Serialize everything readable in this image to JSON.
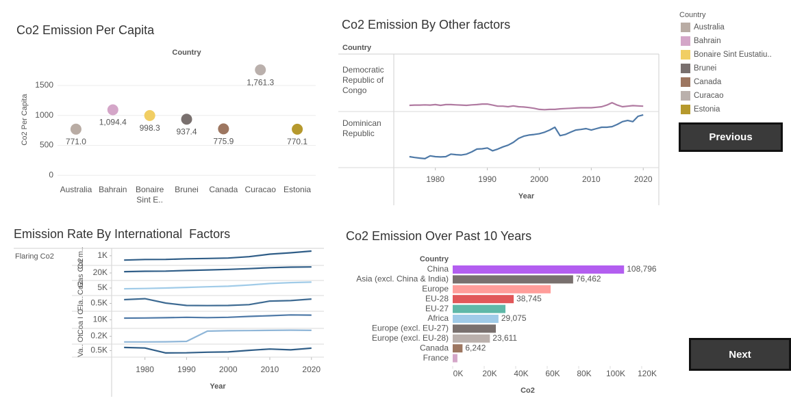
{
  "chart_data": [
    {
      "type": "dot",
      "title": "Co2 Emission Per Capita",
      "column_header": "Country",
      "y_label": "Co2 Per Capita",
      "categories": [
        "Australia",
        "Bahrain",
        "Bonaire Sint E..",
        "Brunei",
        "Canada",
        "Curacao",
        "Estonia"
      ],
      "values": [
        771.0,
        1094.4,
        998.3,
        937.4,
        775.9,
        1761.3,
        770.1
      ],
      "value_labels": [
        "771.0",
        "1,094.4",
        "998.3",
        "937.4",
        "775.9",
        "1,761.3",
        "770.1"
      ],
      "colors": [
        "#b9aca4",
        "#d4a6c8",
        "#f1ce63",
        "#79706e",
        "#9d7660",
        "#bab0ac",
        "#b6992d"
      ],
      "ylim": [
        -100,
        1900
      ],
      "yticks": [
        0,
        500,
        1000,
        1500
      ],
      "grid": true
    },
    {
      "type": "rows",
      "title": "Co2 Emission By Other factors",
      "row_header": "Country",
      "x_label": "Year",
      "x": [
        1975,
        1976,
        1977,
        1978,
        1979,
        1980,
        1981,
        1982,
        1983,
        1984,
        1985,
        1986,
        1987,
        1988,
        1989,
        1990,
        1991,
        1992,
        1993,
        1994,
        1995,
        1996,
        1997,
        1998,
        1999,
        2000,
        2001,
        2002,
        2003,
        2004,
        2005,
        2006,
        2007,
        2008,
        2009,
        2010,
        2011,
        2012,
        2013,
        2014,
        2015,
        2016,
        2017,
        2018,
        2019,
        2020
      ],
      "xlim": [
        1972,
        2023
      ],
      "xticks": [
        1980,
        1990,
        2000,
        2010,
        2020
      ],
      "series": [
        {
          "name": "Democratic Republic of Congo",
          "color": "#b07aa1",
          "ylim": [
            0,
            100
          ],
          "values": [
            11.5,
            12,
            12,
            12.5,
            12,
            13,
            11.5,
            13,
            13,
            12.5,
            12,
            11.5,
            12.5,
            13,
            14,
            14,
            12,
            10,
            10,
            9,
            10.5,
            9,
            8.5,
            7.5,
            6,
            4,
            3.5,
            4,
            4,
            5,
            5.5,
            6,
            6.5,
            7,
            7,
            7,
            8,
            9,
            12,
            16.5,
            12,
            9,
            10,
            11,
            10.5,
            10
          ]
        },
        {
          "name": "Dominican Republic",
          "color": "#4e79a7",
          "ylim": [
            0,
            100
          ],
          "values": [
            19.5,
            18,
            17,
            16,
            21,
            19.5,
            19,
            19.5,
            24,
            23,
            22.5,
            24,
            28,
            33,
            33.5,
            35,
            30,
            33,
            37,
            40,
            45,
            52,
            56,
            58,
            59,
            60.5,
            63,
            67,
            72,
            57,
            59,
            63,
            67,
            68,
            69.5,
            67,
            69.5,
            72,
            72,
            73,
            77,
            82,
            84,
            82,
            91.5,
            94
          ]
        }
      ]
    },
    {
      "type": "rows",
      "title": "Emission Rate By International  Factors",
      "row_header": "Flaring Co2",
      "x_label": "Year",
      "x": [
        1975,
        1980,
        1985,
        1990,
        1995,
        2000,
        2005,
        2010,
        2015,
        2020
      ],
      "xlim": [
        1972,
        2023
      ],
      "xticks": [
        1980,
        1990,
        2000,
        2010,
        2020
      ],
      "series": [
        {
          "name": "Ce m..",
          "color": "#2f5d87",
          "ylim": [
            0,
            1550
          ],
          "yticks": [
            {
              "value": 1000,
              "label": "1K"
            }
          ],
          "values": [
            550,
            610,
            620,
            680,
            720,
            760,
            900,
            1160,
            1300,
            1480
          ]
        },
        {
          "name": "Gas Co2",
          "color": "#2f5d87",
          "ylim": [
            0,
            40000
          ],
          "yticks": [
            {
              "value": 20000,
              "label": "20K"
            }
          ],
          "values": [
            23500,
            24500,
            25000,
            26500,
            28000,
            29500,
            31500,
            34000,
            35500,
            36000
          ]
        },
        {
          "name": "Co2",
          "color": "#a0cbe8",
          "ylim": [
            0,
            10000
          ],
          "yticks": [
            {
              "value": 5000,
              "label": "5K"
            }
          ],
          "values": [
            4500,
            4700,
            5000,
            5400,
            5800,
            6200,
            7000,
            8000,
            8600,
            8900
          ]
        },
        {
          "name": "Fla..",
          "color": "#3d6a92",
          "ylim": [
            0,
            1000
          ],
          "yticks": [
            {
              "value": 500,
              "label": "0.5K"
            }
          ],
          "values": [
            740,
            800,
            520,
            370,
            360,
            370,
            420,
            650,
            680,
            780
          ]
        },
        {
          "name": "Coa I C..",
          "color": "#4e79a7",
          "ylim": [
            0,
            20000
          ],
          "yticks": [
            {
              "value": 10000,
              "label": "10K"
            }
          ],
          "values": [
            12000,
            12200,
            12500,
            13000,
            12600,
            13000,
            14000,
            14800,
            15800,
            15500
          ]
        },
        {
          "name": "Ot..",
          "color": "#8fb6d8",
          "ylim": [
            0,
            400
          ],
          "yticks": [
            {
              "value": 200,
              "label": "0.2K"
            }
          ],
          "values": [
            55,
            55,
            60,
            70,
            330,
            340,
            345,
            350,
            355,
            350
          ]
        },
        {
          "name": "Va..",
          "color": "#2f5d87",
          "ylim": [
            0,
            1000
          ],
          "yticks": [
            {
              "value": 500,
              "label": "0.5K"
            }
          ],
          "values": [
            740,
            700,
            320,
            330,
            380,
            400,
            520,
            620,
            560,
            690
          ]
        }
      ]
    },
    {
      "type": "hbar",
      "title": "Co2 Emission Over Past 10 Years",
      "column_header": "Country",
      "x_label": "Co2",
      "categories": [
        "China",
        "Asia (excl. China & India)",
        "Europe",
        "EU-28",
        "EU-27",
        "Africa",
        "Europe (excl. EU-27)",
        "Europe (excl. EU-28)",
        "Canada",
        "France"
      ],
      "values": [
        108796,
        76462,
        62200,
        38745,
        33500,
        29075,
        27400,
        23611,
        6242,
        3000
      ],
      "value_labels": [
        "108,796",
        "76,462",
        null,
        "38,745",
        null,
        "29,075",
        null,
        "23,611",
        "6,242",
        null
      ],
      "colors": [
        "#b35ef0",
        "#79706e",
        "#ff9d9a",
        "#e15759",
        "#5fb8a8",
        "#a0cbe8",
        "#79706e",
        "#bab0ac",
        "#9d7660",
        "#d4a6c8"
      ],
      "xlim": [
        0,
        130000
      ],
      "xticks": [
        {
          "value": 0,
          "label": "0K"
        },
        {
          "value": 20000,
          "label": "20K"
        },
        {
          "value": 40000,
          "label": "40K"
        },
        {
          "value": 60000,
          "label": "60K"
        },
        {
          "value": 80000,
          "label": "80K"
        },
        {
          "value": 100000,
          "label": "100K"
        },
        {
          "value": 120000,
          "label": "120K"
        }
      ]
    }
  ],
  "legend": {
    "title": "Country",
    "items": [
      {
        "name": "Australia",
        "color": "#b9aca4"
      },
      {
        "name": "Bahrain",
        "color": "#d4a6c8"
      },
      {
        "name": "Bonaire Sint Eustatiu..",
        "color": "#f1ce63"
      },
      {
        "name": "Brunei",
        "color": "#79706e"
      },
      {
        "name": "Canada",
        "color": "#9d7660"
      },
      {
        "name": "Curacao",
        "color": "#bab0ac"
      },
      {
        "name": "Estonia",
        "color": "#b6992d"
      }
    ]
  },
  "buttons": {
    "previous": "Previous",
    "next": "Next"
  }
}
